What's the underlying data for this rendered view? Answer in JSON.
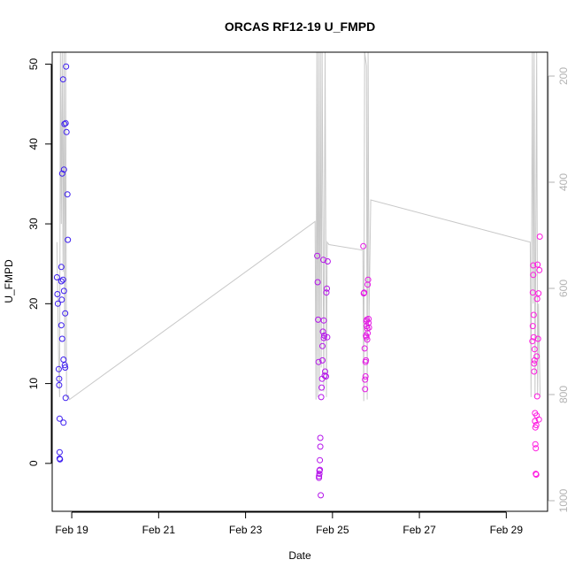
{
  "chart_data": {
    "type": "scatter",
    "title": "ORCAS RF12-19 U_FMPD",
    "xlabel": "Date",
    "ylabel": "U_FMPD",
    "xlim_days": [
      18.55,
      29.95
    ],
    "ylim": [
      -6,
      51.5
    ],
    "right_axis_lim": [
      1020,
      155
    ],
    "x_ticks": [
      {
        "value": 19,
        "label": "Feb 19"
      },
      {
        "value": 21,
        "label": "Feb 21"
      },
      {
        "value": 23,
        "label": "Feb 23"
      },
      {
        "value": 25,
        "label": "Feb 25"
      },
      {
        "value": 27,
        "label": "Feb 27"
      },
      {
        "value": 29,
        "label": "Feb 29"
      }
    ],
    "y_ticks": [
      0,
      10,
      20,
      30,
      40,
      50
    ],
    "right_ticks": [
      200,
      400,
      600,
      800,
      1000
    ],
    "point_colors": [
      "#3b1cf0",
      "#6a18ec",
      "#b414ea",
      "#e417e4",
      "#ff1ae0"
    ],
    "line_color": "#c8c8c8",
    "series": [
      {
        "color": "#3b1cf0",
        "points": [
          [
            18.66,
            23.3
          ],
          [
            18.67,
            21.2
          ],
          [
            18.68,
            20.0
          ],
          [
            18.7,
            11.8
          ],
          [
            18.71,
            10.6
          ],
          [
            18.71,
            9.8
          ],
          [
            18.72,
            5.6
          ],
          [
            18.72,
            1.4
          ],
          [
            18.72,
            0.6
          ],
          [
            18.73,
            0.5
          ],
          [
            18.76,
            22.8
          ],
          [
            18.76,
            24.6
          ],
          [
            18.76,
            17.3
          ],
          [
            18.77,
            20.5
          ],
          [
            18.78,
            15.6
          ],
          [
            18.78,
            36.3
          ],
          [
            18.8,
            48.1
          ],
          [
            18.8,
            23.0
          ],
          [
            18.81,
            13.0
          ],
          [
            18.81,
            5.1
          ],
          [
            18.82,
            21.6
          ],
          [
            18.82,
            36.8
          ],
          [
            18.83,
            42.5
          ],
          [
            18.84,
            12.3
          ],
          [
            18.85,
            12.0
          ],
          [
            18.85,
            18.8
          ],
          [
            18.86,
            8.2
          ],
          [
            18.86,
            42.6
          ],
          [
            18.87,
            49.7
          ],
          [
            18.88,
            41.5
          ],
          [
            18.9,
            33.7
          ],
          [
            18.91,
            28.0
          ]
        ]
      },
      {
        "color": "#b414ea",
        "points": [
          [
            24.65,
            26.0
          ],
          [
            24.66,
            22.7
          ],
          [
            24.67,
            18.0
          ],
          [
            24.68,
            12.7
          ],
          [
            24.69,
            -1.6
          ],
          [
            24.69,
            -1.8
          ],
          [
            24.7,
            -1.3
          ],
          [
            24.7,
            -0.9
          ],
          [
            24.71,
            -0.8
          ],
          [
            24.71,
            0.4
          ],
          [
            24.72,
            2.1
          ],
          [
            24.72,
            3.2
          ],
          [
            24.73,
            -4.0
          ],
          [
            24.74,
            8.3
          ],
          [
            24.75,
            9.5
          ],
          [
            24.76,
            10.6
          ],
          [
            24.77,
            12.9
          ],
          [
            24.77,
            14.7
          ],
          [
            24.78,
            16.5
          ],
          [
            24.79,
            25.5
          ],
          [
            24.8,
            17.9
          ],
          [
            24.8,
            15.7
          ],
          [
            24.81,
            16.0
          ],
          [
            24.82,
            11.0
          ],
          [
            24.83,
            11.5
          ],
          [
            24.85,
            10.9
          ],
          [
            24.86,
            21.4
          ],
          [
            24.87,
            21.9
          ],
          [
            24.88,
            15.8
          ],
          [
            24.89,
            25.3
          ]
        ]
      },
      {
        "color": "#e417e4",
        "points": [
          [
            25.71,
            27.2
          ],
          [
            25.72,
            21.3
          ],
          [
            25.73,
            21.4
          ],
          [
            25.74,
            14.4
          ],
          [
            25.75,
            9.3
          ],
          [
            25.75,
            10.5
          ],
          [
            25.76,
            10.9
          ],
          [
            25.76,
            12.7
          ],
          [
            25.77,
            12.9
          ],
          [
            25.77,
            16.0
          ],
          [
            25.78,
            15.8
          ],
          [
            25.78,
            17.8
          ],
          [
            25.79,
            18.0
          ],
          [
            25.79,
            17.2
          ],
          [
            25.8,
            16.9
          ],
          [
            25.8,
            15.5
          ],
          [
            25.81,
            16.3
          ],
          [
            25.81,
            22.4
          ],
          [
            25.82,
            23.0
          ],
          [
            25.83,
            17.6
          ],
          [
            25.83,
            18.1
          ],
          [
            25.84,
            17.0
          ]
        ]
      },
      {
        "color": "#ff1ae0",
        "points": [
          [
            29.6,
            15.3
          ],
          [
            29.61,
            17.2
          ],
          [
            29.61,
            21.4
          ],
          [
            29.62,
            23.6
          ],
          [
            29.62,
            24.8
          ],
          [
            29.63,
            18.6
          ],
          [
            29.63,
            15.8
          ],
          [
            29.64,
            12.5
          ],
          [
            29.64,
            11.5
          ],
          [
            29.65,
            12.9
          ],
          [
            29.65,
            14.3
          ],
          [
            29.66,
            6.3
          ],
          [
            29.66,
            5.3
          ],
          [
            29.67,
            4.5
          ],
          [
            29.67,
            2.4
          ],
          [
            29.68,
            1.9
          ],
          [
            29.68,
            -1.3
          ],
          [
            29.69,
            -1.4
          ],
          [
            29.69,
            4.8
          ],
          [
            29.7,
            6.0
          ],
          [
            29.7,
            13.4
          ],
          [
            29.71,
            8.4
          ],
          [
            29.71,
            20.6
          ],
          [
            29.72,
            24.9
          ],
          [
            29.73,
            15.6
          ],
          [
            29.74,
            21.3
          ],
          [
            29.75,
            5.5
          ],
          [
            29.76,
            24.2
          ],
          [
            29.77,
            28.4
          ]
        ]
      }
    ],
    "background_line": [
      [
        18.66,
        27.7
      ],
      [
        18.7,
        12.0
      ],
      [
        18.72,
        8.3
      ],
      [
        18.74,
        51.5
      ],
      [
        18.76,
        30.0
      ],
      [
        18.78,
        51.5
      ],
      [
        18.8,
        24.0
      ],
      [
        18.82,
        51.5
      ],
      [
        18.84,
        13.0
      ],
      [
        18.86,
        51.5
      ],
      [
        18.88,
        8.3
      ],
      [
        18.92,
        8.5
      ],
      [
        18.95,
        8.0
      ],
      [
        24.6,
        30.3
      ],
      [
        24.62,
        8.0
      ],
      [
        24.64,
        51.5
      ],
      [
        24.66,
        8.3
      ],
      [
        24.68,
        51.5
      ],
      [
        24.7,
        9.0
      ],
      [
        24.72,
        51.5
      ],
      [
        24.74,
        12.0
      ],
      [
        24.76,
        51.5
      ],
      [
        24.8,
        9.0
      ],
      [
        24.83,
        51.5
      ],
      [
        24.86,
        8.3
      ],
      [
        24.88,
        27.7
      ],
      [
        24.92,
        27.4
      ],
      [
        25.7,
        26.7
      ],
      [
        25.72,
        7.8
      ],
      [
        25.74,
        51.5
      ],
      [
        25.78,
        49.8
      ],
      [
        25.8,
        8.0
      ],
      [
        25.82,
        51.5
      ],
      [
        25.84,
        18.0
      ],
      [
        25.88,
        33.0
      ],
      [
        29.55,
        27.7
      ],
      [
        29.57,
        8.3
      ],
      [
        29.6,
        51.5
      ],
      [
        29.62,
        20.0
      ],
      [
        29.64,
        51.5
      ],
      [
        29.66,
        8.3
      ],
      [
        29.7,
        51.5
      ],
      [
        29.72,
        8.5
      ],
      [
        29.74,
        20.0
      ],
      [
        29.78,
        8.3
      ]
    ]
  }
}
